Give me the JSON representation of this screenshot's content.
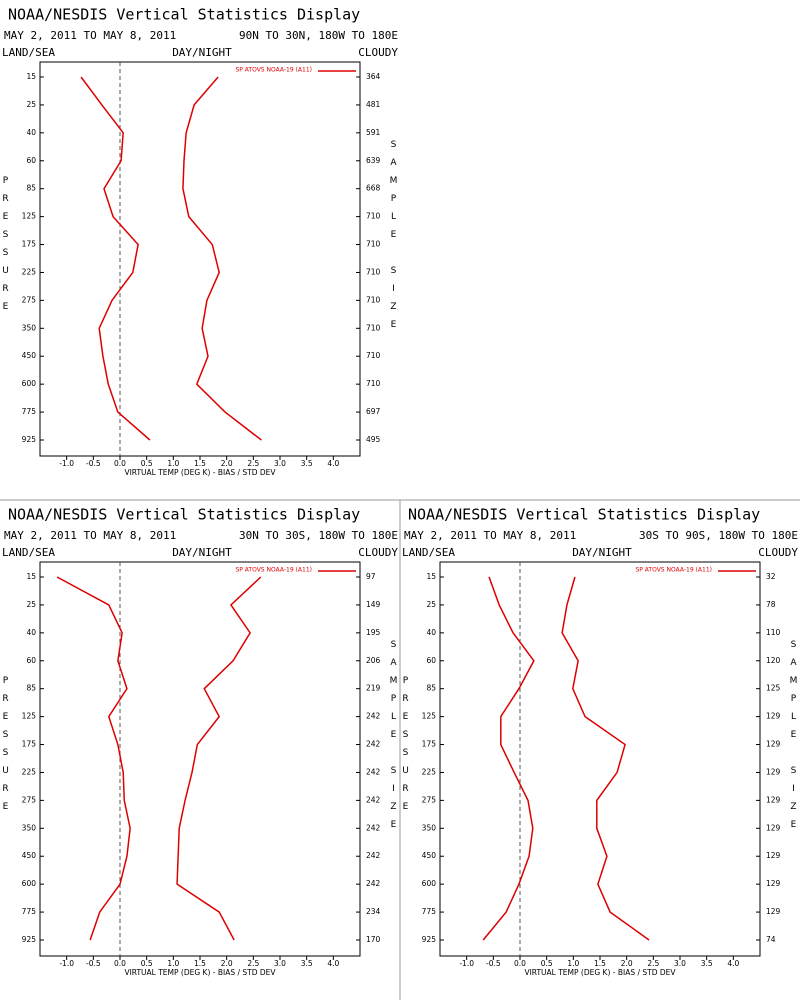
{
  "chart_data": [
    {
      "type": "line",
      "title": "NOAA/NESDIS Vertical Statistics Display",
      "date_range": "MAY 2, 2011 TO MAY 8, 2011",
      "region": "90N TO 30N, 180W TO 180E",
      "land_sea": "LAND/SEA",
      "day_night": "DAY/NIGHT",
      "cloud": "CLOUDY",
      "ylabel": "PRESSURE",
      "y2label": "SAMPLE SIZE",
      "xlabel": "VIRTUAL TEMP (DEG K) - BIAS / STD DEV",
      "categories": [
        15,
        25,
        40,
        60,
        85,
        125,
        175,
        225,
        275,
        350,
        450,
        600,
        775,
        925
      ],
      "sample_size": [
        364,
        481,
        591,
        639,
        668,
        710,
        710,
        710,
        710,
        710,
        710,
        710,
        697,
        495
      ],
      "series": [
        {
          "name": "SP ATOVS NOAA-19 (A11)",
          "color": "#dd0000",
          "values": [
            -0.73,
            -0.34,
            0.06,
            0.02,
            -0.3,
            -0.13,
            0.34,
            0.24,
            -0.15,
            -0.39,
            -0.32,
            -0.22,
            -0.04,
            0.56
          ]
        },
        {
          "color": "#dd0000",
          "values": [
            1.84,
            1.39,
            1.24,
            1.2,
            1.18,
            1.29,
            1.73,
            1.86,
            1.63,
            1.54,
            1.65,
            1.44,
            1.97,
            2.65
          ]
        }
      ],
      "xlim": [
        -1.5,
        4.5
      ],
      "xticks": [
        {
          "value": -1,
          "label": "-1.0"
        },
        -0.5,
        {
          "value": 0,
          "label": "0.0"
        },
        0.5,
        {
          "value": 1,
          "label": "1.0"
        },
        1.5,
        {
          "value": 2,
          "label": "2.0"
        },
        2.5,
        {
          "value": 3,
          "label": "3.0"
        },
        3.5,
        {
          "value": 4,
          "label": "4.0"
        }
      ]
    },
    {
      "type": "line",
      "title": "NOAA/NESDIS Vertical Statistics Display",
      "date_range": "MAY 2, 2011 TO MAY 8, 2011",
      "region": "30N TO 30S, 180W TO 180E",
      "land_sea": "LAND/SEA",
      "day_night": "DAY/NIGHT",
      "cloud": "CLOUDY",
      "ylabel": "PRESSURE",
      "y2label": "SAMPLE SIZE",
      "xlabel": "VIRTUAL TEMP (DEG K) - BIAS / STD DEV",
      "categories": [
        15,
        25,
        40,
        60,
        85,
        125,
        175,
        225,
        275,
        350,
        450,
        600,
        775,
        925
      ],
      "sample_size": [
        97,
        149,
        195,
        206,
        219,
        242,
        242,
        242,
        242,
        242,
        242,
        242,
        234,
        170
      ],
      "series": [
        {
          "name": "SP ATOVS NOAA-19 (A11)",
          "color": "#dd0000",
          "values": [
            -1.18,
            -0.21,
            0.04,
            -0.04,
            0.13,
            -0.21,
            -0.04,
            0.06,
            0.08,
            0.19,
            0.13,
            0,
            -0.38,
            -0.56
          ]
        },
        {
          "color": "#dd0000",
          "values": [
            2.64,
            2.08,
            2.44,
            2.12,
            1.58,
            1.86,
            1.45,
            1.35,
            1.22,
            1.11,
            1.09,
            1.07,
            1.86,
            2.14
          ]
        }
      ],
      "xlim": [
        -1.5,
        4.5
      ],
      "xticks": [
        {
          "value": -1,
          "label": "-1.0"
        },
        -0.5,
        {
          "value": 0,
          "label": "0.0"
        },
        0.5,
        {
          "value": 1,
          "label": "1.0"
        },
        1.5,
        {
          "value": 2,
          "label": "2.0"
        },
        2.5,
        {
          "value": 3,
          "label": "3.0"
        },
        3.5,
        {
          "value": 4,
          "label": "4.0"
        }
      ]
    },
    {
      "type": "line",
      "title": "NOAA/NESDIS Vertical Statistics Display",
      "date_range": "MAY 2, 2011 TO MAY 8, 2011",
      "region": "30S TO 90S, 180W TO 180E",
      "land_sea": "LAND/SEA",
      "day_night": "DAY/NIGHT",
      "cloud": "CLOUDY",
      "ylabel": "PRESSURE",
      "y2label": "SAMPLE SIZE",
      "xlabel": "VIRTUAL TEMP (DEG K) - BIAS / STD DEV",
      "categories": [
        15,
        25,
        40,
        60,
        85,
        125,
        175,
        225,
        275,
        350,
        450,
        600,
        775,
        925
      ],
      "sample_size": [
        32,
        78,
        110,
        120,
        125,
        129,
        129,
        129,
        129,
        129,
        129,
        129,
        129,
        74
      ],
      "series": [
        {
          "name": "SP ATOVS NOAA-19 (A11)",
          "color": "#dd0000",
          "values": [
            -0.58,
            -0.39,
            -0.13,
            0.26,
            -0.02,
            -0.36,
            -0.36,
            -0.11,
            0.15,
            0.24,
            0.17,
            -0.02,
            -0.26,
            -0.69
          ]
        },
        {
          "color": "#dd0000",
          "values": [
            1.03,
            0.88,
            0.79,
            1.09,
            0.99,
            1.22,
            1.97,
            1.82,
            1.44,
            1.44,
            1.63,
            1.46,
            1.69,
            2.42
          ]
        }
      ],
      "xlim": [
        -1.5,
        4.5
      ],
      "xticks": [
        {
          "value": -1,
          "label": "-1.0"
        },
        -0.5,
        {
          "value": 0,
          "label": "0.0"
        },
        0.5,
        {
          "value": 1,
          "label": "1.0"
        },
        1.5,
        {
          "value": 2,
          "label": "2.0"
        },
        2.5,
        {
          "value": 3,
          "label": "3.0"
        },
        3.5,
        {
          "value": 4,
          "label": "4.0"
        }
      ]
    }
  ]
}
